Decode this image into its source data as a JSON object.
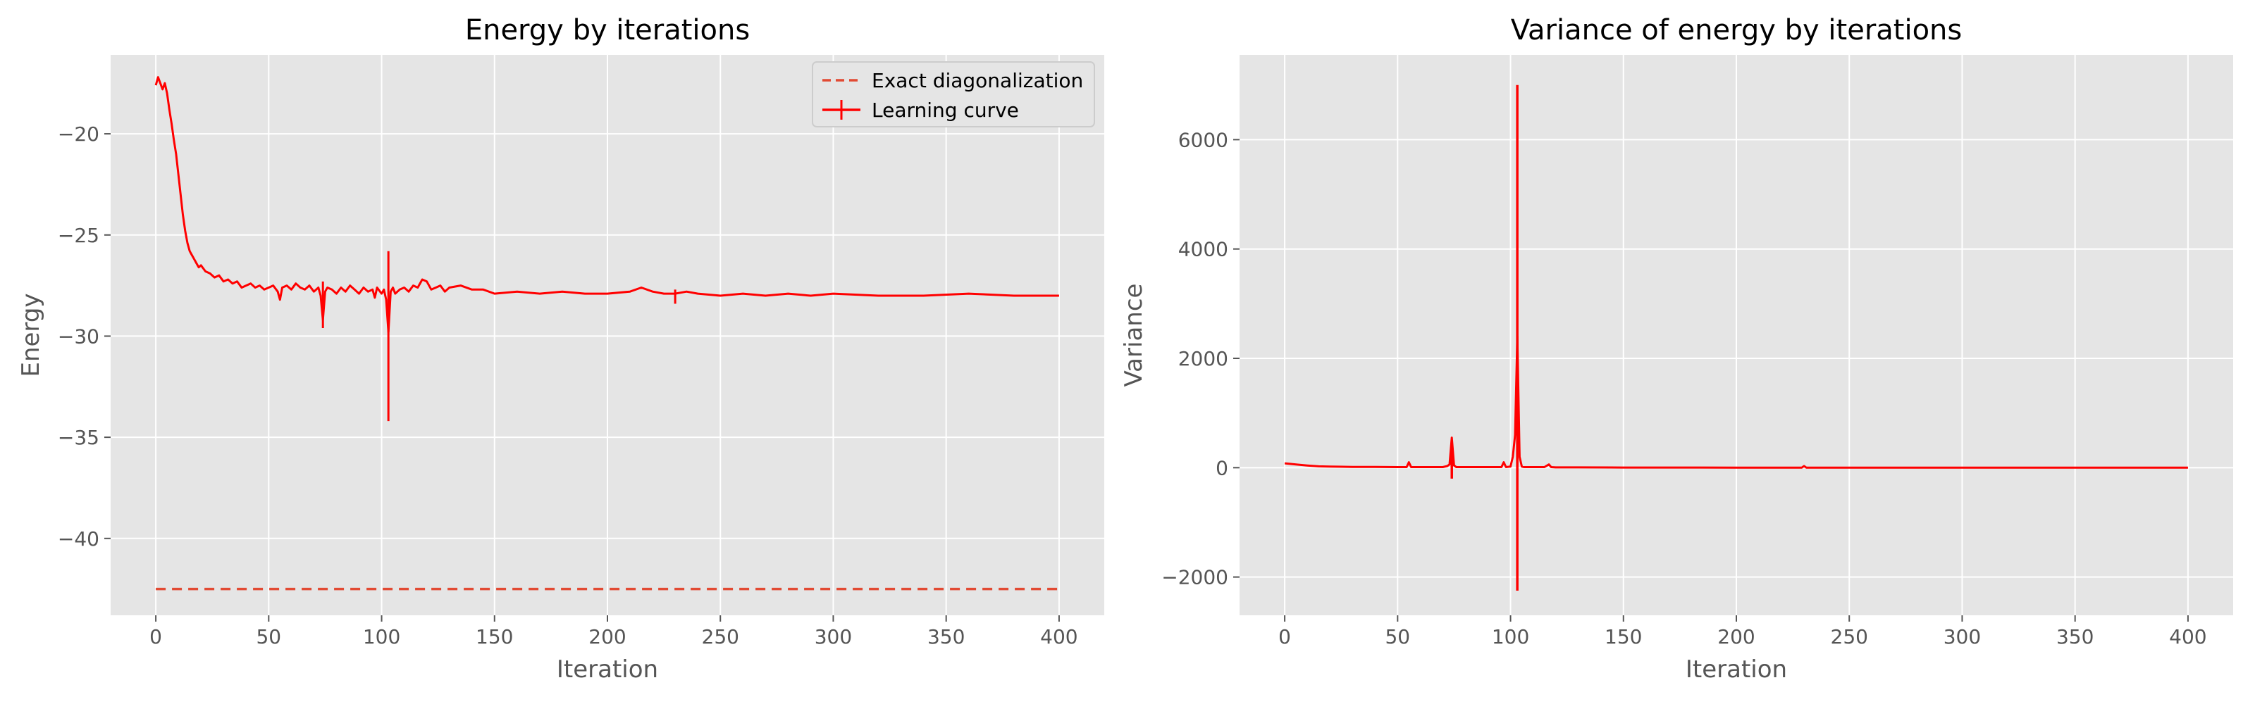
{
  "chart_data": [
    {
      "type": "line",
      "title": "Energy by iterations",
      "xlabel": "Iteration",
      "ylabel": "Energy",
      "xlim": [
        -20,
        420
      ],
      "ylim": [
        -43.8,
        -16.1
      ],
      "xticks": [
        0,
        50,
        100,
        150,
        200,
        250,
        300,
        350,
        400
      ],
      "yticks": [
        -40,
        -35,
        -30,
        -25,
        -20
      ],
      "grid": true,
      "legend": "top-right",
      "colors": {
        "exact": "#e24a33",
        "learning": "#ff0000",
        "background": "#e5e5e5"
      },
      "series": [
        {
          "name": "Exact diagonalization",
          "style": "dashed",
          "x": [
            0,
            400
          ],
          "y": [
            -42.5,
            -42.5
          ]
        },
        {
          "name": "Learning curve",
          "style": "solid-errorbar",
          "x": [
            0,
            1,
            2,
            3,
            4,
            5,
            6,
            7,
            8,
            9,
            10,
            11,
            12,
            13,
            14,
            15,
            16,
            17,
            18,
            19,
            20,
            22,
            24,
            26,
            28,
            30,
            32,
            34,
            36,
            38,
            40,
            42,
            44,
            46,
            48,
            50,
            52,
            54,
            55,
            56,
            58,
            60,
            62,
            64,
            66,
            68,
            70,
            72,
            73,
            74,
            75,
            76,
            78,
            80,
            82,
            84,
            86,
            88,
            90,
            92,
            94,
            96,
            97,
            98,
            100,
            101,
            102,
            103,
            104,
            105,
            106,
            108,
            110,
            112,
            114,
            116,
            118,
            120,
            122,
            124,
            126,
            128,
            130,
            135,
            140,
            145,
            150,
            160,
            170,
            180,
            190,
            200,
            210,
            215,
            220,
            225,
            230,
            235,
            240,
            250,
            260,
            270,
            280,
            290,
            300,
            320,
            340,
            360,
            380,
            400
          ],
          "y": [
            -17.6,
            -17.2,
            -17.5,
            -17.8,
            -17.5,
            -18.0,
            -18.8,
            -19.5,
            -20.3,
            -21.0,
            -22.0,
            -23.0,
            -24.0,
            -24.8,
            -25.4,
            -25.8,
            -26.0,
            -26.2,
            -26.4,
            -26.6,
            -26.5,
            -26.8,
            -26.9,
            -27.1,
            -27.0,
            -27.3,
            -27.2,
            -27.4,
            -27.3,
            -27.6,
            -27.5,
            -27.4,
            -27.6,
            -27.5,
            -27.7,
            -27.6,
            -27.5,
            -27.8,
            -28.2,
            -27.6,
            -27.5,
            -27.7,
            -27.4,
            -27.6,
            -27.7,
            -27.5,
            -27.8,
            -27.6,
            -28.0,
            -29.2,
            -27.8,
            -27.6,
            -27.7,
            -27.9,
            -27.6,
            -27.8,
            -27.5,
            -27.7,
            -27.9,
            -27.6,
            -27.8,
            -27.7,
            -28.1,
            -27.6,
            -27.9,
            -27.7,
            -28.2,
            -29.8,
            -27.8,
            -27.6,
            -27.9,
            -27.7,
            -27.6,
            -27.8,
            -27.5,
            -27.6,
            -27.2,
            -27.3,
            -27.7,
            -27.6,
            -27.5,
            -27.8,
            -27.6,
            -27.5,
            -27.7,
            -27.7,
            -27.9,
            -27.8,
            -27.9,
            -27.8,
            -27.9,
            -27.9,
            -27.8,
            -27.6,
            -27.8,
            -27.9,
            -27.9,
            -27.8,
            -27.9,
            -28.0,
            -27.9,
            -28.0,
            -27.9,
            -28.0,
            -27.9,
            -28.0,
            -28.0,
            -27.9,
            -28.0,
            -28.0
          ],
          "error_bars": [
            {
              "x": 103,
              "lower": -34.2,
              "upper": -25.8
            },
            {
              "x": 74,
              "lower": -29.6,
              "upper": -27.3
            },
            {
              "x": 230,
              "lower": -28.4,
              "upper": -27.7
            }
          ]
        }
      ]
    },
    {
      "type": "line",
      "title": "Variance of energy by iterations",
      "xlabel": "Iteration",
      "ylabel": "Variance",
      "xlim": [
        -20,
        420
      ],
      "ylim": [
        -2700,
        7550
      ],
      "xticks": [
        0,
        50,
        100,
        150,
        200,
        250,
        300,
        350,
        400
      ],
      "yticks": [
        -2000,
        0,
        2000,
        4000,
        6000
      ],
      "grid": true,
      "legend": "none",
      "colors": {
        "line": "#ff0000",
        "background": "#e5e5e5"
      },
      "series": [
        {
          "name": "",
          "x": [
            0,
            5,
            10,
            15,
            20,
            30,
            40,
            50,
            54,
            55,
            56,
            60,
            70,
            72,
            73,
            74,
            75,
            76,
            80,
            90,
            96,
            97,
            98,
            100,
            101,
            102,
            103,
            104,
            105,
            106,
            110,
            115,
            117,
            118,
            120,
            130,
            150,
            200,
            229,
            230,
            231,
            250,
            300,
            350,
            400
          ],
          "y": [
            80,
            60,
            40,
            25,
            20,
            15,
            15,
            10,
            10,
            100,
            10,
            10,
            10,
            30,
            60,
            550,
            40,
            10,
            10,
            10,
            10,
            100,
            10,
            20,
            200,
            600,
            2400,
            200,
            20,
            10,
            10,
            10,
            60,
            10,
            5,
            5,
            3,
            2,
            2,
            30,
            2,
            1,
            1,
            1,
            1
          ]
        }
      ],
      "error_bars": [
        {
          "x": 74,
          "lower": -200,
          "upper": 500
        },
        {
          "x": 103,
          "lower": -2250,
          "upper": 7000
        }
      ]
    }
  ]
}
